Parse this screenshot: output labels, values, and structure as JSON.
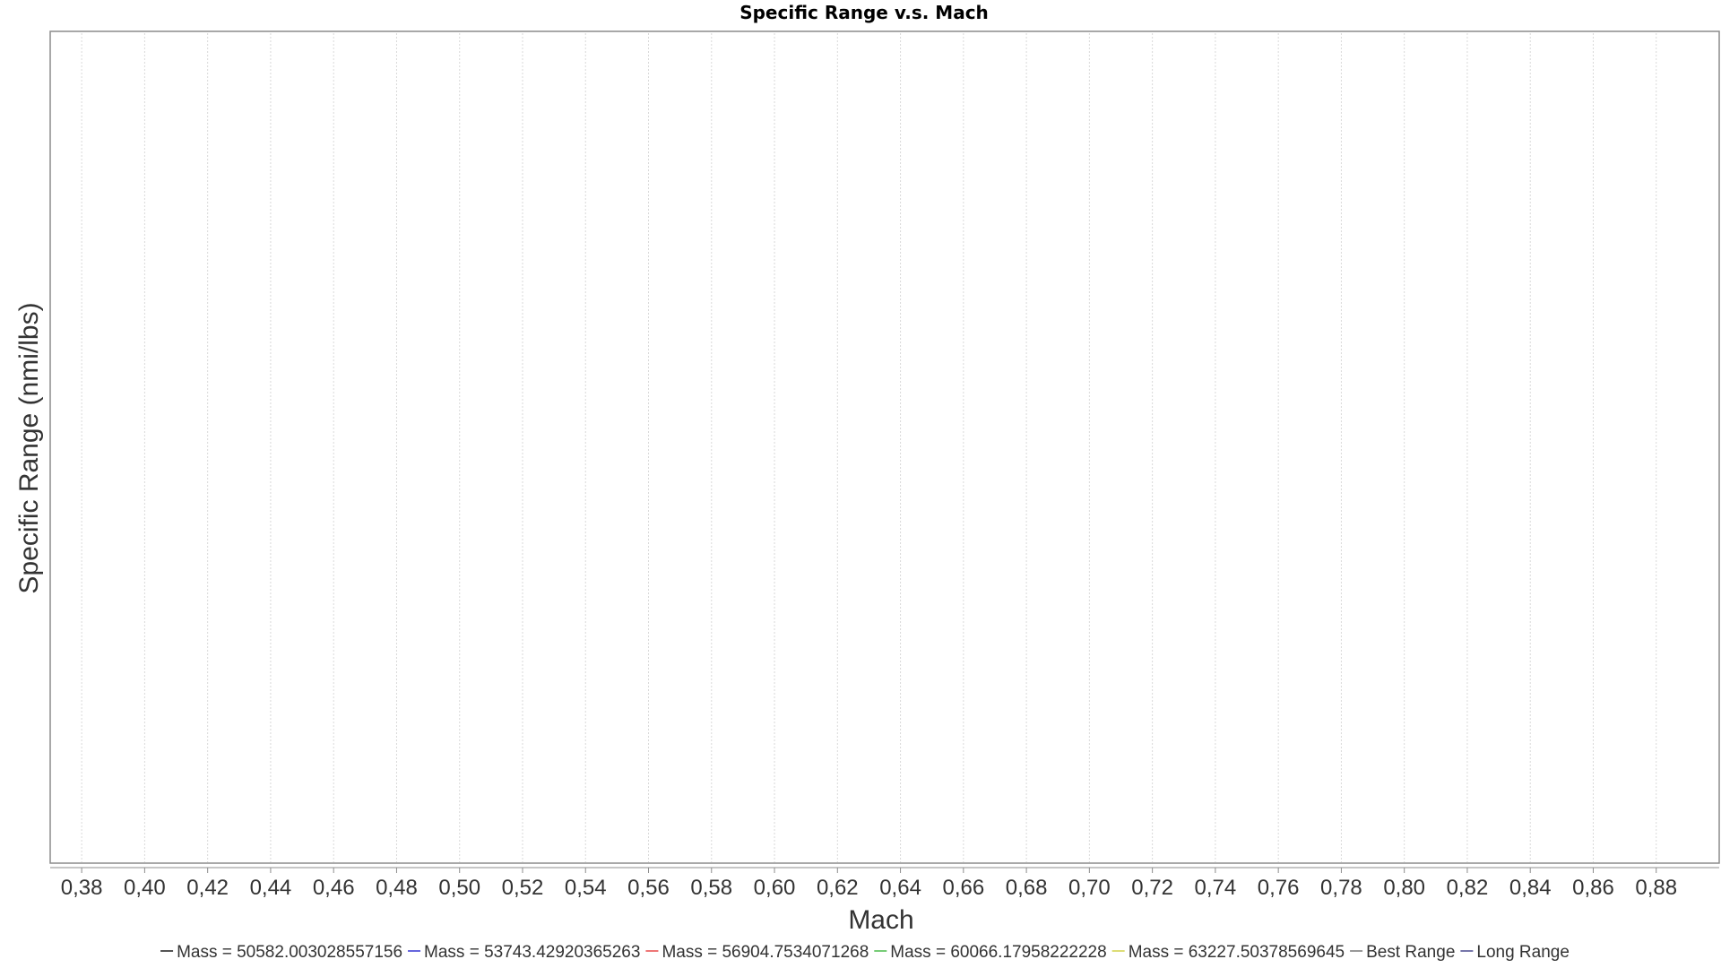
{
  "chart_data": {
    "type": "line",
    "title": "Specific Range v.s. Mach",
    "xlabel": "Mach",
    "ylabel": "Specific Range (nmi/lbs)",
    "xlim": [
      0.37,
      0.9
    ],
    "x_ticks": [
      "0,38",
      "0,40",
      "0,42",
      "0,44",
      "0,46",
      "0,48",
      "0,50",
      "0,52",
      "0,54",
      "0,56",
      "0,58",
      "0,60",
      "0,62",
      "0,64",
      "0,66",
      "0,68",
      "0,70",
      "0,72",
      "0,74",
      "0,76",
      "0,78",
      "0,80",
      "0,82",
      "0,84",
      "0,86",
      "0,88"
    ],
    "x_tick_values": [
      0.38,
      0.4,
      0.42,
      0.44,
      0.46,
      0.48,
      0.5,
      0.52,
      0.54,
      0.56,
      0.58,
      0.6,
      0.62,
      0.64,
      0.66,
      0.68,
      0.7,
      0.72,
      0.74,
      0.76,
      0.78,
      0.8,
      0.82,
      0.84,
      0.86,
      0.88
    ],
    "grid": "vertical",
    "legend_position": "bottom",
    "series": [
      {
        "name": "Mass = 50582.003028557156",
        "color": "#555555",
        "values": []
      },
      {
        "name": "Mass = 53743.42920365263",
        "color": "#6666dd",
        "values": []
      },
      {
        "name": "Mass = 56904.7534071268",
        "color": "#ee7777",
        "values": []
      },
      {
        "name": "Mass = 60066.17958222228",
        "color": "#77cc77",
        "values": []
      },
      {
        "name": "Mass = 63227.50378569645",
        "color": "#dddd77",
        "values": []
      },
      {
        "name": "Best Range",
        "color": "#999999",
        "values": []
      },
      {
        "name": "Long Range",
        "color": "#7777aa",
        "values": []
      }
    ]
  }
}
